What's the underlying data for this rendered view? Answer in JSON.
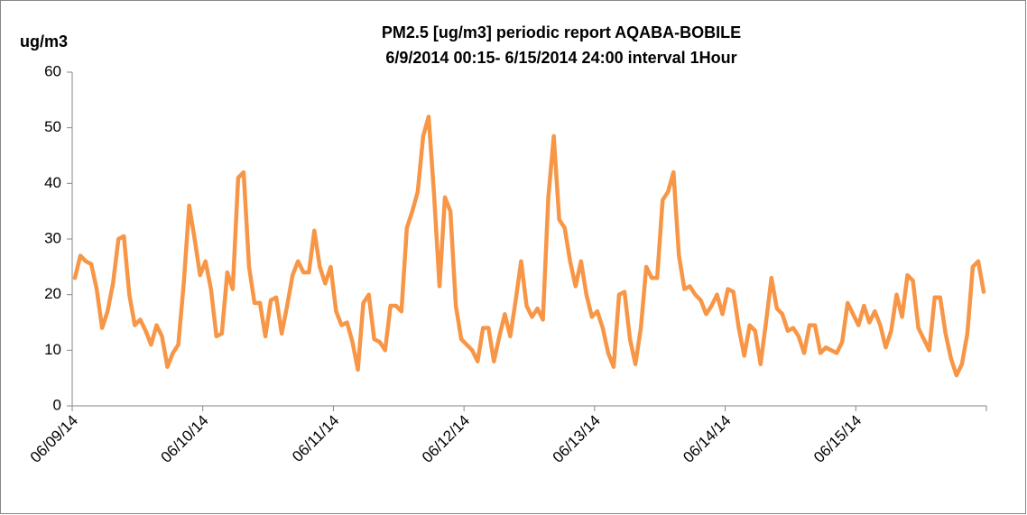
{
  "chart_data": {
    "type": "line",
    "title": "PM2.5 [ug/m3] periodic report AQABA-BOBILE",
    "subtitle": "6/9/2014 00:15- 6/15/2014 24:00 interval 1Hour",
    "y_label": "ug/m3",
    "categories": [
      "06/09/14",
      null,
      null,
      null,
      null,
      null,
      null,
      null,
      null,
      null,
      null,
      null,
      null,
      null,
      null,
      null,
      null,
      null,
      null,
      null,
      null,
      null,
      null,
      null,
      "06/10/14",
      null,
      null,
      null,
      null,
      null,
      null,
      null,
      null,
      null,
      null,
      null,
      null,
      null,
      null,
      null,
      null,
      null,
      null,
      null,
      null,
      null,
      null,
      null,
      "06/11/14",
      null,
      null,
      null,
      null,
      null,
      null,
      null,
      null,
      null,
      null,
      null,
      null,
      null,
      null,
      null,
      null,
      null,
      null,
      null,
      null,
      null,
      null,
      null,
      "06/12/14",
      null,
      null,
      null,
      null,
      null,
      null,
      null,
      null,
      null,
      null,
      null,
      null,
      null,
      null,
      null,
      null,
      null,
      null,
      null,
      null,
      null,
      null,
      null,
      "06/13/14",
      null,
      null,
      null,
      null,
      null,
      null,
      null,
      null,
      null,
      null,
      null,
      null,
      null,
      null,
      null,
      null,
      null,
      null,
      null,
      null,
      null,
      null,
      null,
      "06/14/14",
      null,
      null,
      null,
      null,
      null,
      null,
      null,
      null,
      null,
      null,
      null,
      null,
      null,
      null,
      null,
      null,
      null,
      null,
      null,
      null,
      null,
      null,
      null,
      "06/15/14",
      null,
      null,
      null,
      null,
      null,
      null,
      null,
      null,
      null,
      null,
      null,
      null,
      null,
      null,
      null,
      null,
      null,
      null,
      null,
      null,
      null,
      null,
      null
    ],
    "series": [
      {
        "name": "PM2.5",
        "color": "#f79646",
        "values": [
          23,
          27,
          26,
          25.5,
          21,
          14,
          17,
          22,
          30,
          30.5,
          20,
          14.5,
          15.5,
          13.5,
          11,
          14.5,
          12.5,
          7,
          9.5,
          11,
          22,
          36,
          30,
          23.5,
          26,
          21,
          12.5,
          13,
          24,
          21,
          41,
          42,
          25,
          18.5,
          18.5,
          12.5,
          19,
          19.5,
          13,
          18,
          23.5,
          26,
          24,
          24,
          31.5,
          25,
          22,
          25,
          17,
          14.5,
          15,
          11.5,
          6.5,
          18.5,
          20,
          12,
          11.5,
          10,
          18,
          18,
          17,
          32,
          35,
          38.5,
          48.5,
          52,
          38,
          21.5,
          37.5,
          35,
          18,
          12,
          11,
          10,
          8,
          14,
          14,
          8,
          12.5,
          16.5,
          12.5,
          19,
          26,
          18,
          16,
          17.5,
          15.5,
          37.5,
          48.5,
          33.5,
          32,
          26,
          21.5,
          26,
          20,
          16,
          17,
          14,
          9.5,
          7,
          20,
          20.5,
          12,
          7.5,
          14,
          25,
          23,
          23,
          37,
          38.5,
          42,
          27,
          21,
          21.5,
          20,
          19,
          16.5,
          18,
          20,
          16.5,
          21,
          20.5,
          14,
          9,
          14.5,
          13.5,
          7.5,
          15,
          23,
          17.5,
          16.5,
          13.5,
          14,
          12.5,
          9.5,
          14.5,
          14.5,
          9.5,
          10.5,
          10,
          9.5,
          11.5,
          18.5,
          16.5,
          14.5,
          18,
          15,
          17,
          14.5,
          10.5,
          13.5,
          20,
          16,
          23.5,
          22.5,
          14,
          12,
          10,
          19.5,
          19.5,
          13,
          8.5,
          5.5,
          7.5,
          13,
          25,
          26,
          20.5
        ]
      }
    ],
    "ylim": [
      0,
      60
    ],
    "yticks": [
      0,
      10,
      20,
      30,
      40,
      50,
      60
    ],
    "grid": false
  }
}
